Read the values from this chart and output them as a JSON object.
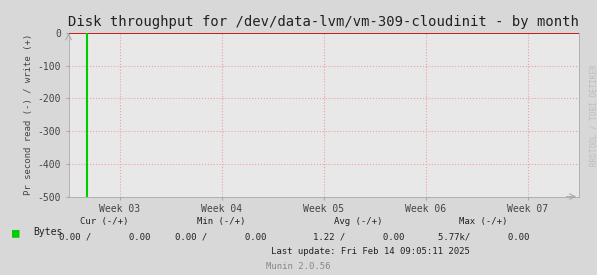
{
  "title": "Disk throughput for /dev/data-lvm/vm-309-cloudinit - by month",
  "ylabel": "Pr second read (-) / write (+)",
  "ylim": [
    -500,
    0
  ],
  "yticks": [
    0,
    -100,
    -200,
    -300,
    -400,
    -500
  ],
  "xlim": [
    0,
    5
  ],
  "xtick_positions": [
    0.5,
    1.5,
    2.5,
    3.5,
    4.5
  ],
  "xtick_labels": [
    "Week 03",
    "Week 04",
    "Week 05",
    "Week 06",
    "Week 07"
  ],
  "bg_color": "#d8d8d8",
  "plot_bg_color": "#e8e8e8",
  "grid_color": "#f0a0a0",
  "line_color": "#00cc00",
  "zero_line_color": "#cc0000",
  "vertical_line_x": 0.18,
  "legend_label": "Bytes",
  "legend_color": "#00cc00",
  "cur_label": "Cur (-/+)",
  "min_label": "Min (-/+)",
  "avg_label": "Avg (-/+)",
  "max_label": "Max (-/+)",
  "cur_val": "0.00 /       0.00",
  "min_val": "0.00 /       0.00",
  "avg_val": "1.22 /       0.00",
  "max_val": "5.77k/       0.00",
  "last_update": "Last update: Fri Feb 14 09:05:11 2025",
  "munin_version": "Munin 2.0.56",
  "watermark": "RRDTOOL / TOBI OETIKER",
  "title_fontsize": 10,
  "axis_label_fontsize": 6.5,
  "tick_fontsize": 7,
  "stats_fontsize": 6.5,
  "watermark_fontsize": 5.5
}
